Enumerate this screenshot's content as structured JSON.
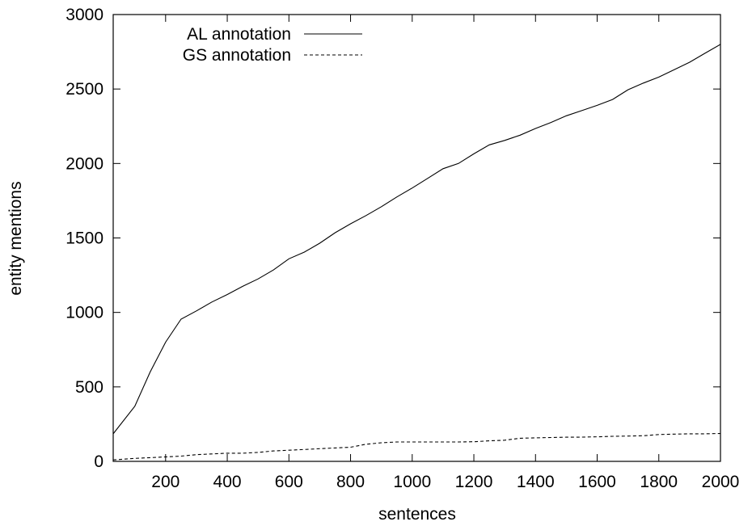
{
  "chart_data": {
    "type": "line",
    "xlabel": "sentences",
    "ylabel": "entity mentions",
    "xlim": [
      30,
      2000
    ],
    "ylim": [
      0,
      3000
    ],
    "x_ticks": [
      200,
      400,
      600,
      800,
      1000,
      1200,
      1400,
      1600,
      1800,
      2000
    ],
    "y_ticks": [
      0,
      500,
      1000,
      1500,
      2000,
      2500,
      3000
    ],
    "grid": false,
    "legend_position": "top-left",
    "series": [
      {
        "name": "AL annotation",
        "line_style": "solid",
        "color": "#000000",
        "points": [
          [
            30,
            185
          ],
          [
            100,
            370
          ],
          [
            150,
            600
          ],
          [
            200,
            800
          ],
          [
            250,
            955
          ],
          [
            300,
            1010
          ],
          [
            350,
            1070
          ],
          [
            400,
            1120
          ],
          [
            450,
            1175
          ],
          [
            500,
            1225
          ],
          [
            550,
            1285
          ],
          [
            600,
            1360
          ],
          [
            650,
            1405
          ],
          [
            700,
            1465
          ],
          [
            750,
            1535
          ],
          [
            800,
            1595
          ],
          [
            850,
            1650
          ],
          [
            900,
            1710
          ],
          [
            950,
            1775
          ],
          [
            1000,
            1835
          ],
          [
            1050,
            1900
          ],
          [
            1100,
            1965
          ],
          [
            1150,
            2000
          ],
          [
            1200,
            2065
          ],
          [
            1250,
            2125
          ],
          [
            1300,
            2155
          ],
          [
            1350,
            2190
          ],
          [
            1400,
            2235
          ],
          [
            1450,
            2275
          ],
          [
            1500,
            2320
          ],
          [
            1550,
            2355
          ],
          [
            1600,
            2390
          ],
          [
            1650,
            2430
          ],
          [
            1700,
            2495
          ],
          [
            1750,
            2540
          ],
          [
            1800,
            2580
          ],
          [
            1850,
            2630
          ],
          [
            1900,
            2680
          ],
          [
            1950,
            2740
          ],
          [
            2000,
            2800
          ]
        ]
      },
      {
        "name": "GS annotation",
        "line_style": "dashed",
        "color": "#000000",
        "points": [
          [
            30,
            10
          ],
          [
            100,
            20
          ],
          [
            150,
            25
          ],
          [
            200,
            30
          ],
          [
            250,
            35
          ],
          [
            300,
            45
          ],
          [
            350,
            50
          ],
          [
            400,
            55
          ],
          [
            450,
            55
          ],
          [
            500,
            60
          ],
          [
            550,
            70
          ],
          [
            600,
            75
          ],
          [
            650,
            80
          ],
          [
            700,
            85
          ],
          [
            750,
            90
          ],
          [
            800,
            95
          ],
          [
            850,
            115
          ],
          [
            900,
            125
          ],
          [
            950,
            130
          ],
          [
            1000,
            130
          ],
          [
            1050,
            130
          ],
          [
            1100,
            130
          ],
          [
            1150,
            130
          ],
          [
            1200,
            132
          ],
          [
            1250,
            138
          ],
          [
            1300,
            142
          ],
          [
            1350,
            155
          ],
          [
            1400,
            158
          ],
          [
            1450,
            160
          ],
          [
            1500,
            162
          ],
          [
            1550,
            163
          ],
          [
            1600,
            165
          ],
          [
            1650,
            168
          ],
          [
            1700,
            170
          ],
          [
            1750,
            172
          ],
          [
            1800,
            180
          ],
          [
            1850,
            183
          ],
          [
            1900,
            185
          ],
          [
            1950,
            185
          ],
          [
            2000,
            187
          ]
        ]
      }
    ]
  }
}
